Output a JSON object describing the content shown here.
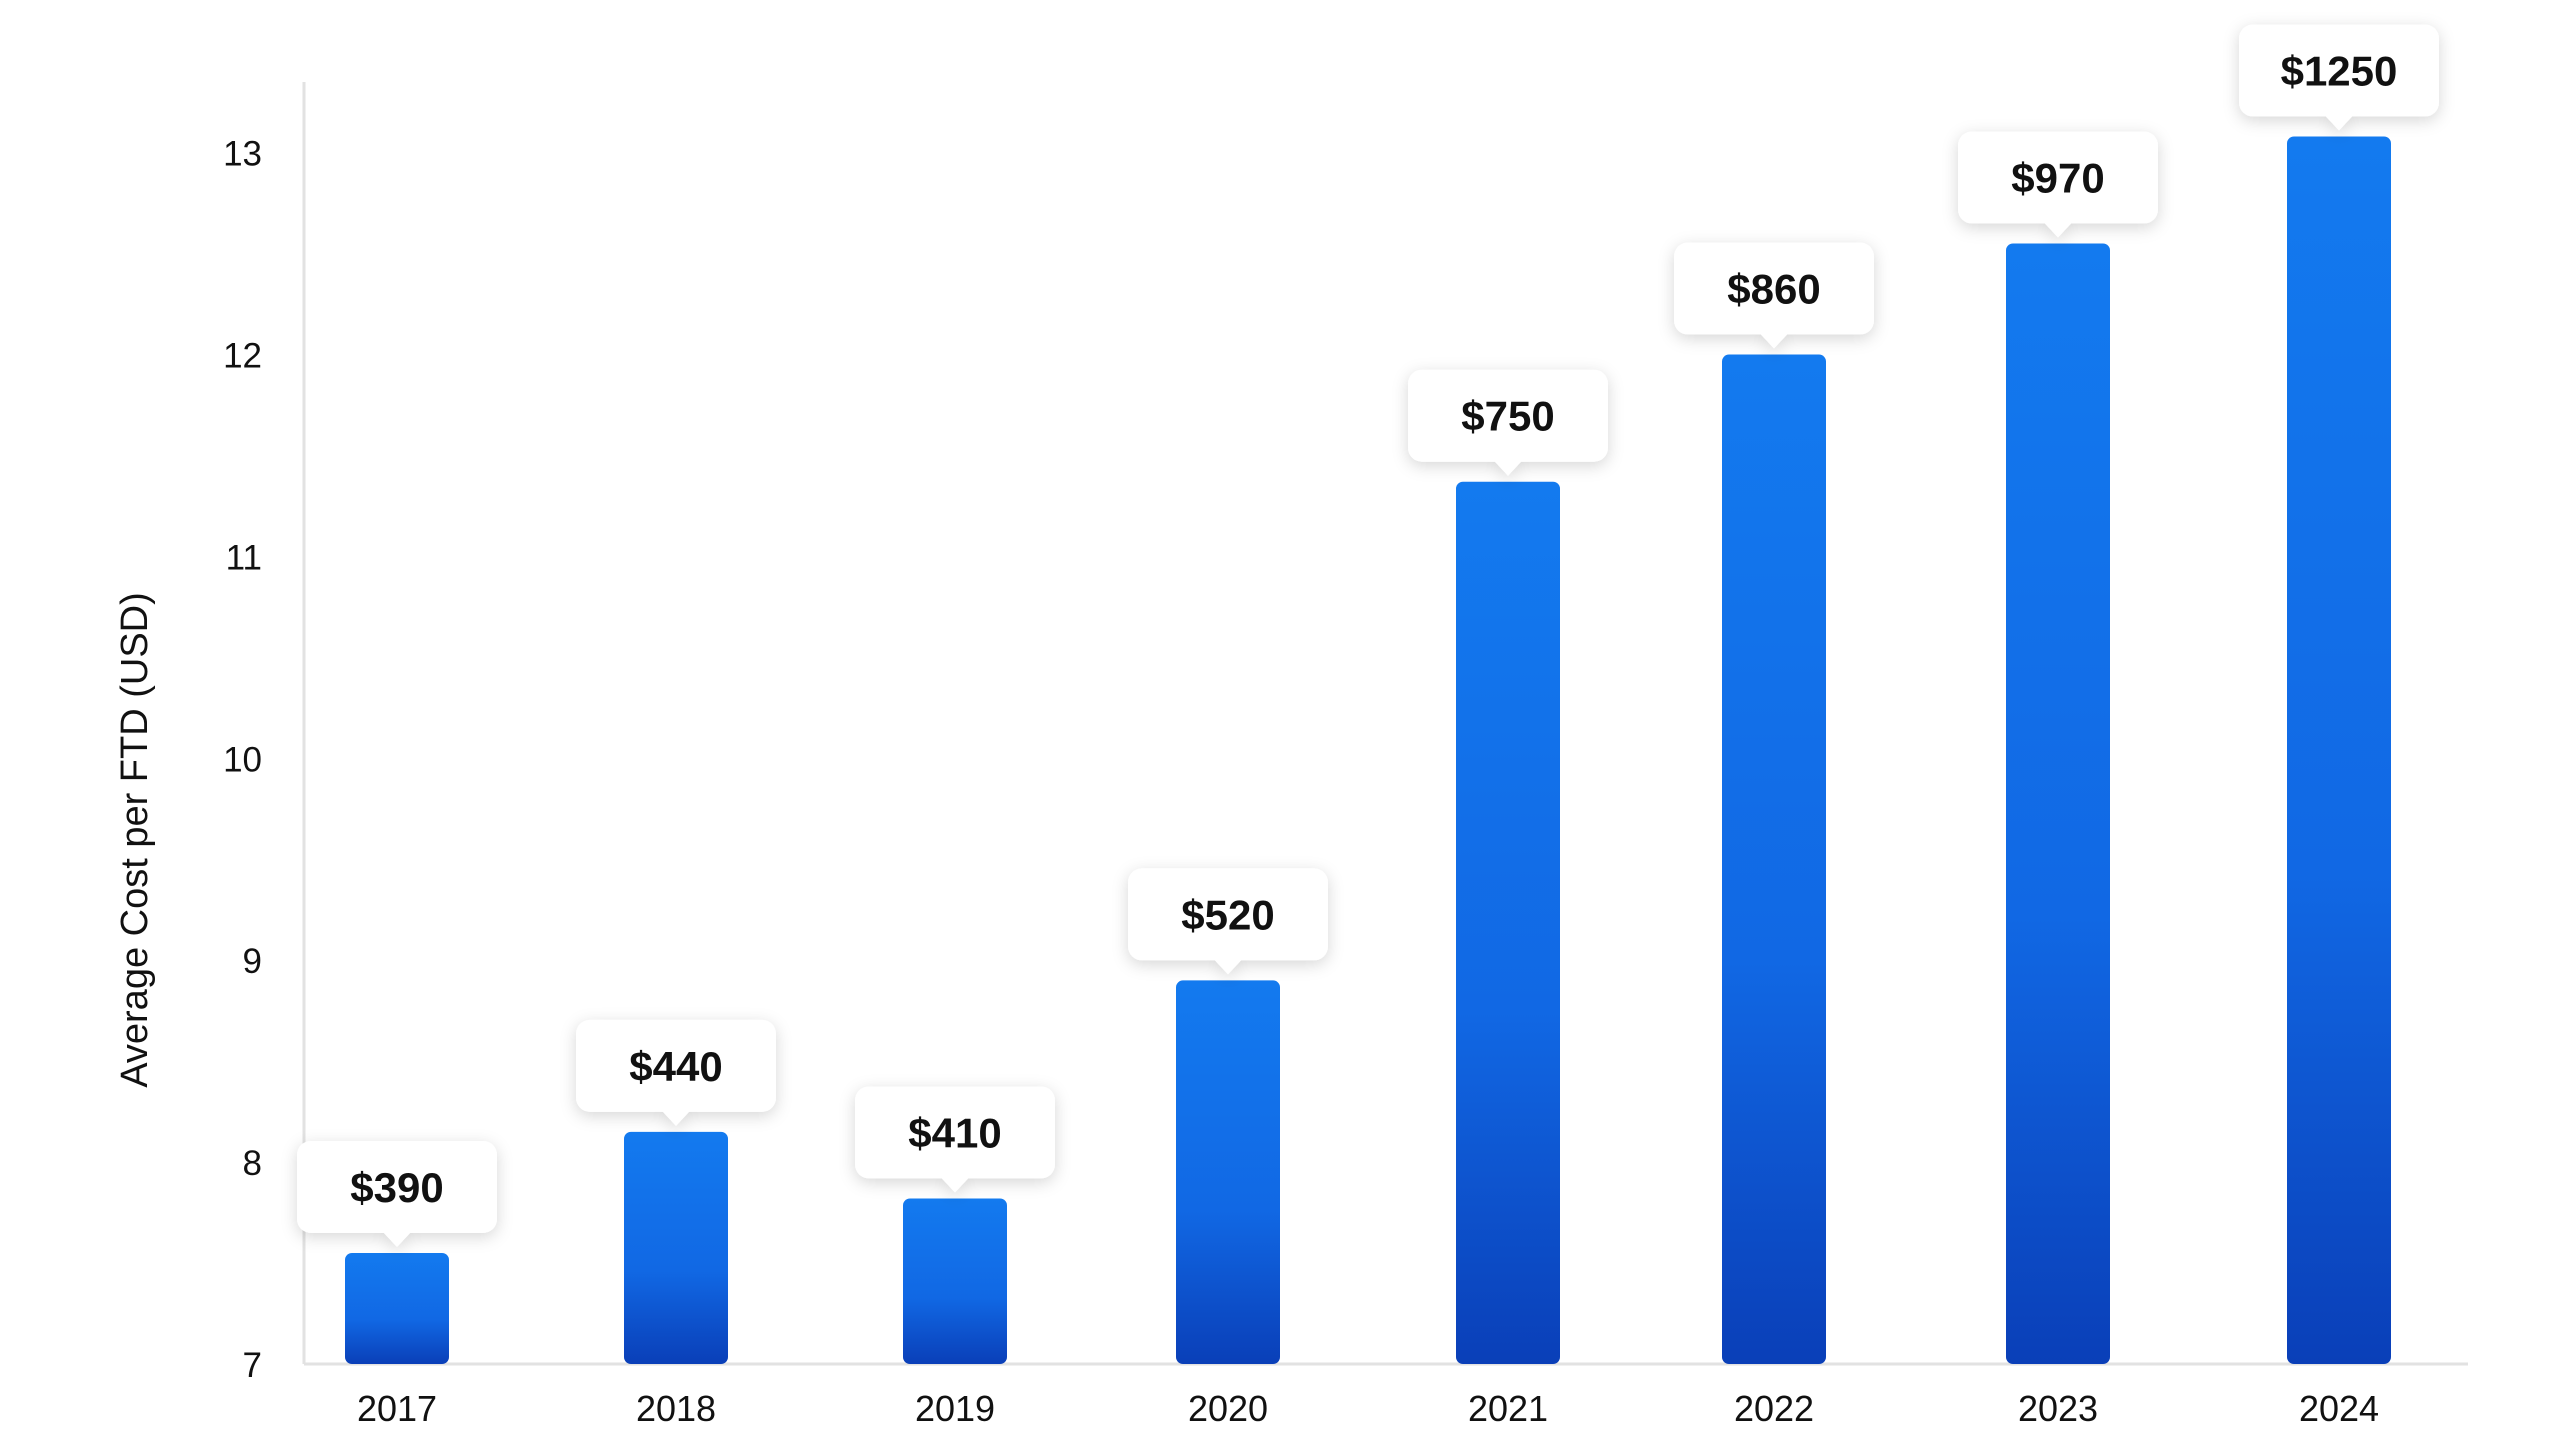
{
  "chart_data": {
    "type": "bar",
    "title": "",
    "xlabel": "",
    "ylabel": "Average Cost per FTD (USD)",
    "categories": [
      "2017",
      "2018",
      "2019",
      "2020",
      "2021",
      "2022",
      "2023",
      "2024"
    ],
    "values": [
      7.55,
      8.15,
      7.82,
      8.9,
      11.37,
      12.0,
      12.55,
      13.08
    ],
    "data_labels": [
      "$390",
      "$440",
      "$410",
      "$520",
      "$750",
      "$860",
      "$970",
      "$1250"
    ],
    "y_ticks": [
      "7",
      "8",
      "9",
      "10",
      "11",
      "12",
      "13"
    ],
    "ylim": [
      7,
      13.35
    ],
    "grid": false,
    "legend": "none",
    "colors": {
      "bar_top": "#137AEF",
      "bar_bottom": "#0A3FB8",
      "label_bg": "#FFFFFF",
      "text": "#111111",
      "axis": "#E2E2E2"
    }
  }
}
